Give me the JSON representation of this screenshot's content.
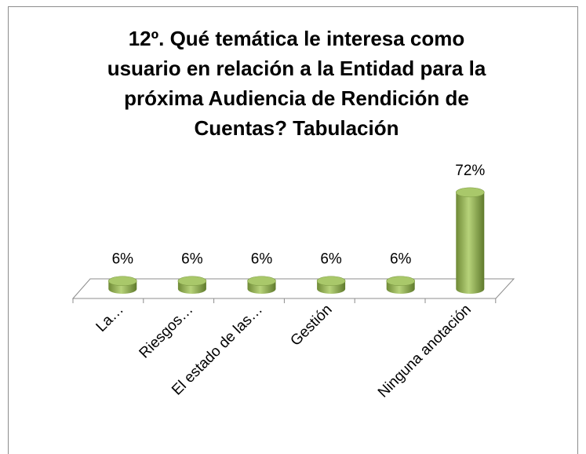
{
  "chart_data": {
    "type": "bar3d",
    "title": "12º. Qué temática le interesa como usuario en relación a la Entidad para la próxima Audiencia de Rendición de Cuentas? Tabulación",
    "categories": [
      "La…",
      "Riesgos…",
      "El estado de las…",
      "Gestión",
      null,
      "Ninguna anotación"
    ],
    "values": [
      6,
      6,
      6,
      6,
      6,
      72
    ],
    "value_labels": [
      "6%",
      "6%",
      "6%",
      "6%",
      "6%",
      "72%"
    ],
    "color": "#9bbb59"
  }
}
